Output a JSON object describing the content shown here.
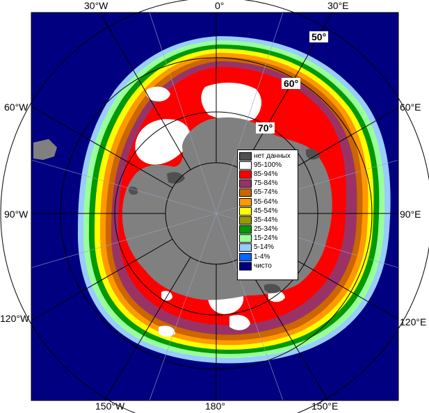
{
  "lon_labels": {
    "top_left": "30°W",
    "top_center": "0°",
    "top_right": "30°E",
    "left_upper": "60°W",
    "right_upper": "60°E",
    "left_mid": "90°W",
    "right_mid": "90°E",
    "left_lower": "120°W",
    "right_lower": "120°E",
    "bottom_left": "150°W",
    "bottom_center": "180°",
    "bottom_right": "150°E"
  },
  "lat_labels": {
    "lat50": "50°",
    "lat60": "60°",
    "lat70": "70°"
  },
  "legend": [
    {
      "label": "нет данных",
      "color": "#505050"
    },
    {
      "label": "95-100%",
      "color": "#ffffff"
    },
    {
      "label": "85-94%",
      "color": "#ff0000"
    },
    {
      "label": "75-84%",
      "color": "#993366"
    },
    {
      "label": "65-74%",
      "color": "#cc6600"
    },
    {
      "label": "55-64%",
      "color": "#ff9900"
    },
    {
      "label": "45-54%",
      "color": "#ffff00"
    },
    {
      "label": "35-44%",
      "color": "#999900"
    },
    {
      "label": "25-34%",
      "color": "#009900"
    },
    {
      "label": "15-24%",
      "color": "#99ff99"
    },
    {
      "label": "5-14%",
      "color": "#99ccff"
    },
    {
      "label": "1-4%",
      "color": "#0066ff"
    },
    {
      "label": "чисто",
      "color": "#000080"
    }
  ],
  "colors": {
    "ocean": "#000080",
    "land": "#808080",
    "ice_edge_light": "#99ccff",
    "ice_15": "#99ff99",
    "ice_25": "#009900",
    "ice_45": "#ffff00",
    "ice_55": "#ff9900",
    "ice_65": "#cc6600",
    "ice_75": "#993366",
    "ice_85": "#ff0000",
    "ice_95": "#ffffff",
    "grid": "#000000"
  }
}
